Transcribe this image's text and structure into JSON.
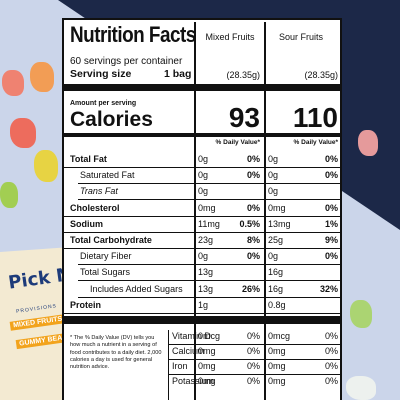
{
  "background": {
    "colors": {
      "navy": "#1c2848",
      "light": "#cbd5ea"
    },
    "bag": {
      "brand": "Pick Me Up",
      "subtitle": "PROVISIONS",
      "band1": "MIXED FRUITS",
      "band2": "GUMMY BEARS"
    }
  },
  "label": {
    "title": "Nutrition Facts",
    "columns": [
      "Mixed Fruits",
      "Sour Fruits"
    ],
    "servings_per_container": "60 servings per container",
    "serving_size_label": "Serving size",
    "serving_size_value": "1 bag",
    "serving_weight": [
      "(28.35g)",
      "(28.35g)"
    ],
    "amount_per_serving": "Amount per serving",
    "calories_label": "Calories",
    "calories": [
      "93",
      "110"
    ],
    "dv_header": "% Daily Value*",
    "nutrients": [
      {
        "label": "Total Fat",
        "bold": true,
        "amt": [
          "0g",
          "0g"
        ],
        "dv": [
          "0%",
          "0%"
        ]
      },
      {
        "label": "Saturated Fat",
        "indent": 1,
        "amt": [
          "0g",
          "0g"
        ],
        "dv": [
          "0%",
          "0%"
        ]
      },
      {
        "label": "Trans Fat",
        "indent": 1,
        "italic_prefix": true,
        "amt": [
          "0g",
          "0g"
        ],
        "dv": [
          "",
          ""
        ]
      },
      {
        "label": "Cholesterol",
        "bold": true,
        "amt": [
          "0mg",
          "0mg"
        ],
        "dv": [
          "0%",
          "0%"
        ]
      },
      {
        "label": "Sodium",
        "bold": true,
        "amt": [
          "11mg",
          "13mg"
        ],
        "dv": [
          "0.5%",
          "1%"
        ]
      },
      {
        "label": "Total Carbohydrate",
        "bold": true,
        "amt": [
          "23g",
          "25g"
        ],
        "dv": [
          "8%",
          "9%"
        ]
      },
      {
        "label": "Dietary Fiber",
        "indent": 1,
        "amt": [
          "0g",
          "0g"
        ],
        "dv": [
          "0%",
          "0%"
        ]
      },
      {
        "label": "Total Sugars",
        "indent": 1,
        "amt": [
          "13g",
          "16g"
        ],
        "dv": [
          "",
          ""
        ]
      },
      {
        "label": "Includes Added Sugars",
        "indent": 2,
        "amt": [
          "13g",
          "16g"
        ],
        "dv": [
          "26%",
          "32%"
        ]
      },
      {
        "label": "Protein",
        "bold": true,
        "amt": [
          "1g",
          "0.8g"
        ],
        "dv": [
          "",
          ""
        ]
      }
    ],
    "footnote": "* The % Daily Value (DV) tells you how much a nutrient in a serving of food contributes to a daily diet. 2,000 calories a day is used for general nutrition advice.",
    "vitamins": [
      {
        "label": "Vitamin D",
        "amt": [
          "0mcg",
          "0mcg"
        ],
        "dv": [
          "0%",
          "0%"
        ]
      },
      {
        "label": "Calcium",
        "amt": [
          "0mg",
          "0mg"
        ],
        "dv": [
          "0%",
          "0%"
        ]
      },
      {
        "label": "Iron",
        "amt": [
          "0mg",
          "0mg"
        ],
        "dv": [
          "0%",
          "0%"
        ]
      },
      {
        "label": "Potassium",
        "amt": [
          "0mg",
          "0mg"
        ],
        "dv": [
          "0%",
          "0%"
        ]
      }
    ]
  }
}
